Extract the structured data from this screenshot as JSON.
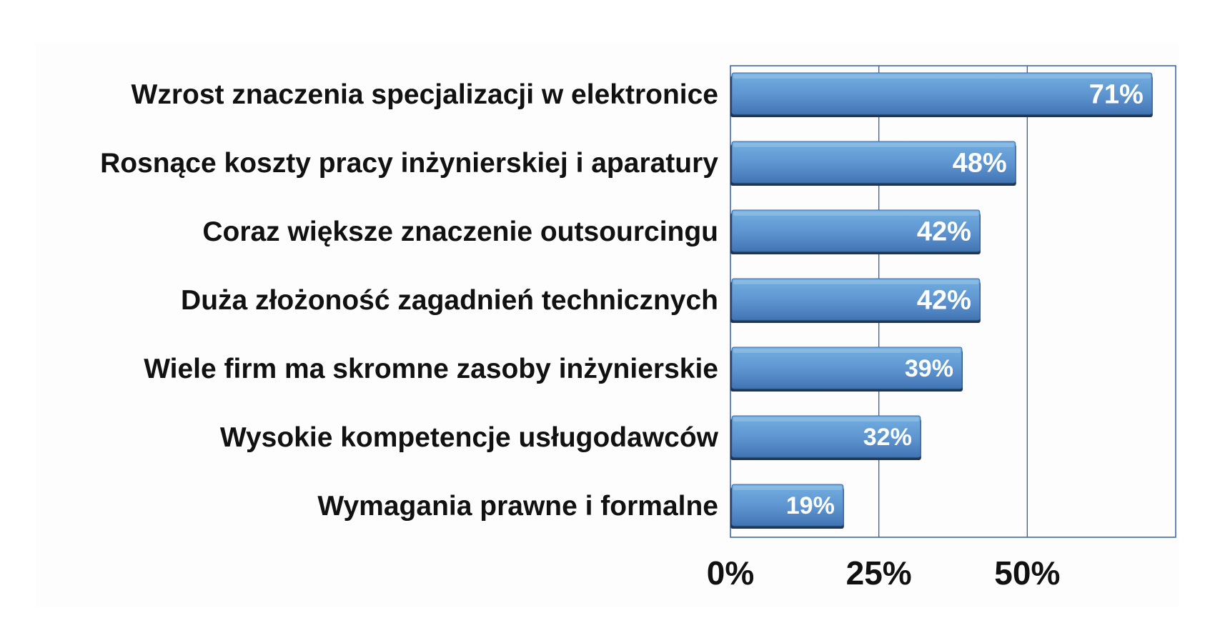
{
  "chart_data": {
    "type": "bar",
    "orientation": "horizontal",
    "categories": [
      "Wzrost znaczenia specjalizacji w elektronice",
      "Rosnące koszty pracy inżynierskiej i aparatury",
      "Coraz większe znaczenie outsourcingu",
      "Duża złożoność zagadnień technicznych",
      "Wiele firm ma skromne zasoby inżynierskie",
      "Wysokie kompetencje usługodawców",
      "Wymagania prawne i formalne"
    ],
    "values": [
      71,
      48,
      42,
      42,
      39,
      32,
      19
    ],
    "value_labels": [
      "71%",
      "48%",
      "42%",
      "42%",
      "39%",
      "32%",
      "19%"
    ],
    "x_ticks": [
      0,
      25,
      50
    ],
    "x_tick_labels": [
      "0%",
      "25%",
      "50%"
    ],
    "xlim": [
      0,
      75
    ],
    "grid": "vertical",
    "colors": {
      "bar_top": "#6aa8dc",
      "bar_bottom": "#4377b8",
      "bar_shadow": "#1d2f4a",
      "frame": "#2f5fa8"
    }
  }
}
